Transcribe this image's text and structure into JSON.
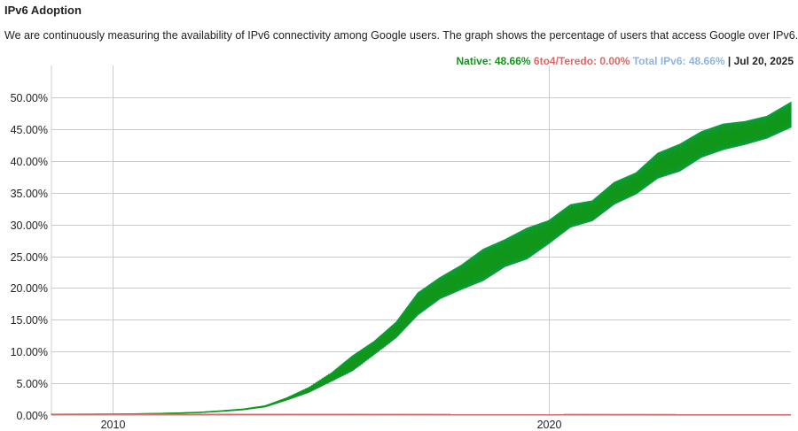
{
  "header": {
    "title": "IPv6 Adoption",
    "description": "We are continuously measuring the availability of IPv6 connectivity among Google users. The graph shows the percentage of users that access Google over IPv6."
  },
  "legend": {
    "native": "Native: 48.66%",
    "teredo": "6to4/Teredo: 0.00%",
    "total": "Total IPv6: 48.66%",
    "separator": "|",
    "date": "Jul 20, 2025"
  },
  "colors": {
    "native": "#109618",
    "native_band": "#0b9e3f",
    "teredo": "#dc6666",
    "total": "#8db3e2",
    "grid": "#cccccc"
  },
  "chart_data": {
    "type": "area",
    "xlim": [
      2008.6,
      2025.55
    ],
    "ylim": [
      0,
      50
    ],
    "x_ticks": [
      2010,
      2020
    ],
    "y_ticks": [
      "0.00%",
      "5.00%",
      "10.00%",
      "15.00%",
      "20.00%",
      "25.00%",
      "30.00%",
      "35.00%",
      "40.00%",
      "45.00%",
      "50.00%"
    ],
    "grid": true,
    "legend_position": "top-right",
    "series": [
      {
        "name": "Native",
        "color": "#109618",
        "x": [
          2008.6,
          2009.5,
          2010.0,
          2010.5,
          2011.0,
          2011.5,
          2012.0,
          2012.5,
          2013.0,
          2013.5,
          2014.0,
          2014.5,
          2015.0,
          2015.5,
          2016.0,
          2016.5,
          2017.0,
          2017.5,
          2018.0,
          2018.5,
          2019.0,
          2019.5,
          2020.0,
          2020.5,
          2021.0,
          2021.5,
          2022.0,
          2022.5,
          2023.0,
          2023.5,
          2024.0,
          2024.5,
          2025.0,
          2025.55
        ],
        "low": [
          0.1,
          0.12,
          0.15,
          0.18,
          0.22,
          0.3,
          0.4,
          0.6,
          0.85,
          1.3,
          2.4,
          3.6,
          5.3,
          7.0,
          9.6,
          12.2,
          15.8,
          18.3,
          19.8,
          21.2,
          23.4,
          24.6,
          27.0,
          29.6,
          30.6,
          33.2,
          34.8,
          37.3,
          38.4,
          40.6,
          41.8,
          42.6,
          43.6,
          45.3
        ],
        "high": [
          0.12,
          0.14,
          0.17,
          0.2,
          0.25,
          0.33,
          0.45,
          0.67,
          0.95,
          1.45,
          2.7,
          4.3,
          6.5,
          9.3,
          11.6,
          14.6,
          19.2,
          21.6,
          23.6,
          26.1,
          27.6,
          29.4,
          30.6,
          33.1,
          33.7,
          36.6,
          38.1,
          41.2,
          42.6,
          44.6,
          45.8,
          46.2,
          47.0,
          49.2
        ]
      },
      {
        "name": "6to4/Teredo",
        "color": "#dc6666",
        "x": [
          2008.6,
          2025.55
        ],
        "values": [
          0.05,
          0.0
        ]
      }
    ]
  }
}
